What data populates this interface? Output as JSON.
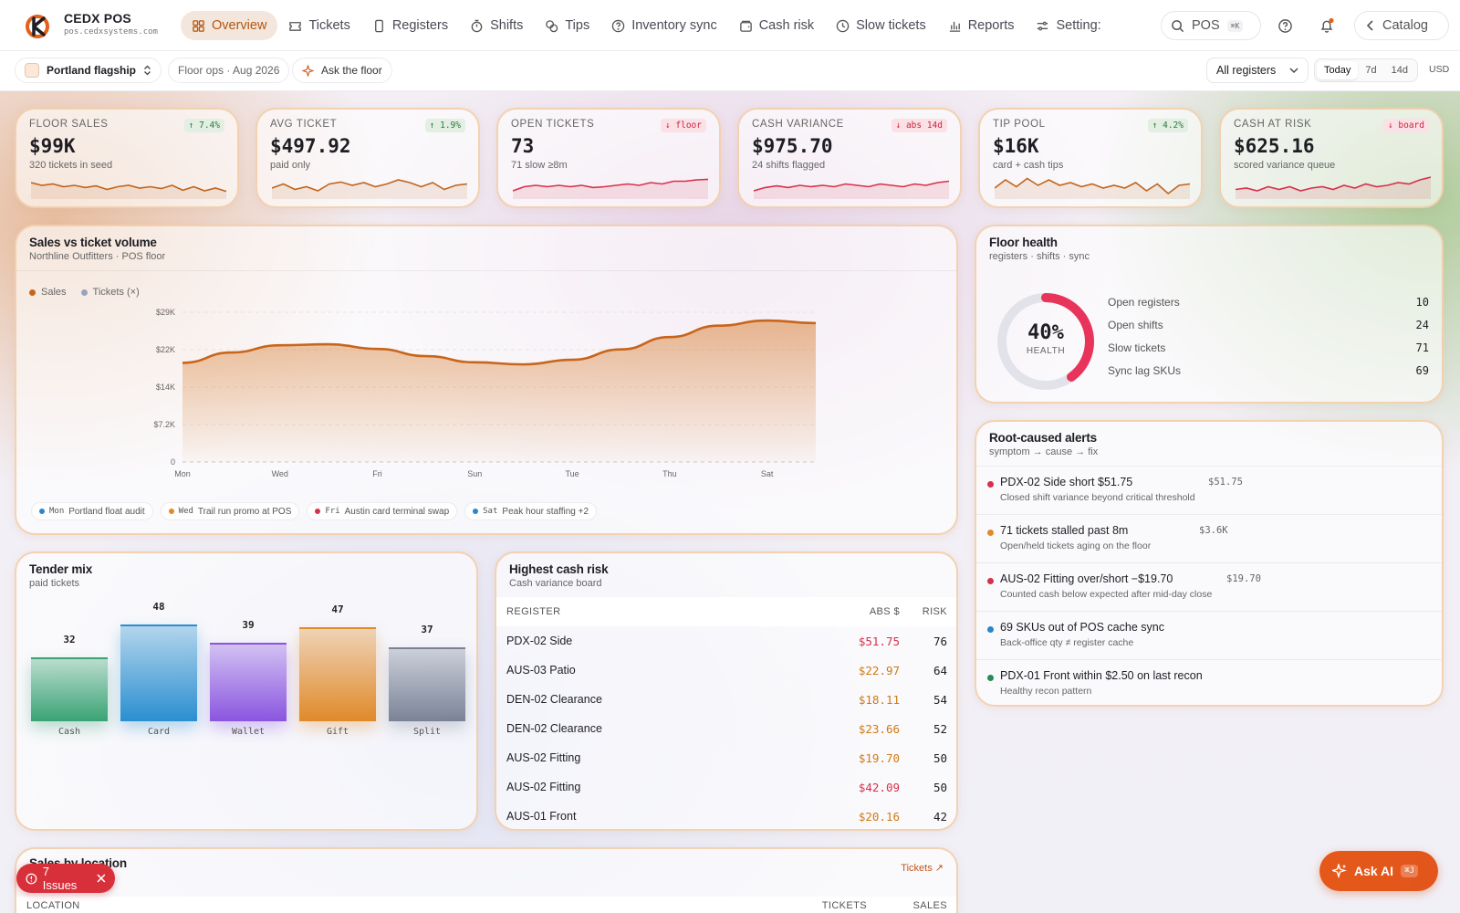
{
  "app": {
    "title": "CEDX POS",
    "subtitle": "pos.cedxsystems.com"
  },
  "nav": [
    {
      "label": "Overview",
      "icon": "grid-icon",
      "active": true
    },
    {
      "label": "Tickets",
      "icon": "ticket-icon"
    },
    {
      "label": "Registers",
      "icon": "register-icon"
    },
    {
      "label": "Shifts",
      "icon": "stopwatch-icon"
    },
    {
      "label": "Tips",
      "icon": "coins-icon"
    },
    {
      "label": "Inventory sync",
      "icon": "question-circle-icon"
    },
    {
      "label": "Cash risk",
      "icon": "wallet-icon"
    },
    {
      "label": "Slow tickets",
      "icon": "clock-icon"
    },
    {
      "label": "Reports",
      "icon": "bar-chart-icon"
    },
    {
      "label": "Setting:",
      "icon": "sliders-icon"
    }
  ],
  "search": {
    "label": "POS",
    "shortcut": "⌘K"
  },
  "catalog": {
    "label": "Catalog"
  },
  "subbar": {
    "store": "Portland flagship",
    "context": "Floor ops · Aug 2026",
    "ask": "Ask the floor",
    "registers": "All registers",
    "ranges": [
      "Today",
      "7d",
      "14d"
    ],
    "currency": "USD"
  },
  "kpis": [
    {
      "label": "FLOOR SALES",
      "value": "$99K",
      "sub": "320 tickets in seed",
      "badge": "↑ 7.4%",
      "trend": "up"
    },
    {
      "label": "AVG TICKET",
      "value": "$497.92",
      "sub": "paid only",
      "badge": "↑ 1.9%",
      "trend": "up"
    },
    {
      "label": "OPEN TICKETS",
      "value": "73",
      "sub": "71 slow ≥8m",
      "badge": "↓ floor",
      "trend": "down"
    },
    {
      "label": "CASH VARIANCE",
      "value": "$975.70",
      "sub": "24 shifts flagged",
      "badge": "↓ abs 14d",
      "trend": "down"
    },
    {
      "label": "TIP POOL",
      "value": "$16K",
      "sub": "card + cash tips",
      "badge": "↑ 4.2%",
      "trend": "up"
    },
    {
      "label": "CASH AT RISK",
      "value": "$625.16",
      "sub": "scored variance queue",
      "badge": "↓ board",
      "trend": "down"
    }
  ],
  "colors": {
    "accent": "#c8651a",
    "danger": "#d8304a",
    "ok": "#2a7a3e",
    "info": "#2a86c8"
  },
  "sales_chart": {
    "title": "Sales vs ticket volume",
    "subtitle": "Northline Outfitters · POS floor",
    "legend": [
      "Sales",
      "Tickets (×)"
    ],
    "annotations": [
      {
        "day": "Mon",
        "text": "Portland float audit",
        "color": "#2a86c8"
      },
      {
        "day": "Wed",
        "text": "Trail run promo at POS",
        "color": "#e08a2a"
      },
      {
        "day": "Fri",
        "text": "Austin card terminal swap",
        "color": "#d8304a"
      },
      {
        "day": "Sat",
        "text": "Peak hour staffing +2",
        "color": "#2a86c8"
      }
    ]
  },
  "chart_data": {
    "type": "area",
    "title": "Sales vs ticket volume",
    "x": [
      "Mon",
      "",
      "Wed",
      "",
      "Fri",
      "",
      "Sun",
      "",
      "Tue",
      "",
      "Thu",
      "",
      "Sat",
      ""
    ],
    "series": [
      {
        "name": "Sales",
        "values": [
          19200,
          21200,
          22600,
          22800,
          21900,
          20500,
          19300,
          18900,
          19800,
          21800,
          24200,
          26400,
          27400,
          26900
        ]
      }
    ],
    "yticks": [
      "0",
      "$7.2K",
      "$14K",
      "$22K",
      "$29K"
    ],
    "ylim": [
      0,
      29000
    ],
    "xticks": [
      "Mon",
      "Wed",
      "Fri",
      "Sun",
      "Tue",
      "Thu",
      "Sat"
    ]
  },
  "health": {
    "title": "Floor health",
    "subtitle": "registers · shifts · sync",
    "percent": "40%",
    "percent_value": 40,
    "label": "HEALTH",
    "rows": [
      {
        "k": "Open registers",
        "v": "10"
      },
      {
        "k": "Open shifts",
        "v": "24"
      },
      {
        "k": "Slow tickets",
        "v": "71"
      },
      {
        "k": "Sync lag SKUs",
        "v": "69"
      }
    ]
  },
  "alerts": {
    "title": "Root-caused alerts",
    "subtitle": "symptom → cause → fix",
    "items": [
      {
        "title": "PDX-02 Side short $51.75",
        "sub": "Closed shift variance beyond critical threshold",
        "amount": "$51.75",
        "color": "#d8304a"
      },
      {
        "title": "71 tickets stalled past 8m",
        "sub": "Open/held tickets aging on the floor",
        "amount": "$3.6K",
        "color": "#e08a2a"
      },
      {
        "title": "AUS-02 Fitting over/short −$19.70",
        "sub": "Counted cash below expected after mid-day close",
        "amount": "$19.70",
        "color": "#d8304a"
      },
      {
        "title": "69 SKUs out of POS cache sync",
        "sub": "Back-office qty ≠ register cache",
        "amount": "",
        "color": "#2a86c8"
      },
      {
        "title": "PDX-01 Front within $2.50 on last recon",
        "sub": "Healthy recon pattern",
        "amount": "",
        "color": "#2a8a5a"
      }
    ]
  },
  "tender": {
    "title": "Tender mix",
    "subtitle": "paid tickets",
    "bars": [
      {
        "label": "Cash",
        "value": 32,
        "color": "#3aa374"
      },
      {
        "label": "Card",
        "value": 48,
        "color": "#2a8fd0"
      },
      {
        "label": "Wallet",
        "value": 39,
        "color": "#8a55e0"
      },
      {
        "label": "Gift",
        "value": 47,
        "color": "#e08a2a"
      },
      {
        "label": "Split",
        "value": 37,
        "color": "#7a8396"
      }
    ]
  },
  "risk": {
    "title": "Highest cash risk",
    "subtitle": "Cash variance board",
    "cols": [
      "REGISTER",
      "ABS $",
      "RISK"
    ],
    "rows": [
      {
        "reg": "PDX-02 Side",
        "abs": "$51.75",
        "risk": "76",
        "color": "#d8304a"
      },
      {
        "reg": "AUS-03 Patio",
        "abs": "$22.97",
        "risk": "64",
        "color": "#d07a14"
      },
      {
        "reg": "DEN-02 Clearance",
        "abs": "$18.11",
        "risk": "54",
        "color": "#d07a14"
      },
      {
        "reg": "DEN-02 Clearance",
        "abs": "$23.66",
        "risk": "52",
        "color": "#d07a14"
      },
      {
        "reg": "AUS-02 Fitting",
        "abs": "$19.70",
        "risk": "50",
        "color": "#d07a14"
      },
      {
        "reg": "AUS-02 Fitting",
        "abs": "$42.09",
        "risk": "50",
        "color": "#d8304a"
      },
      {
        "reg": "AUS-01 Front",
        "abs": "$20.16",
        "risk": "42",
        "color": "#d07a14"
      }
    ]
  },
  "location": {
    "title": "Sales by location",
    "link": "Tickets ↗",
    "cols": [
      "LOCATION",
      "TICKETS",
      "SALES"
    ]
  },
  "issues": {
    "label": "7 Issues"
  },
  "askai": {
    "label": "Ask AI",
    "shortcut": "⌘J"
  }
}
